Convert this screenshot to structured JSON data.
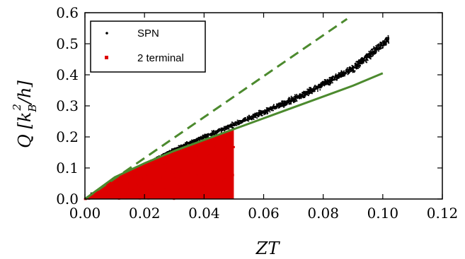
{
  "chart_data": {
    "type": "scatter",
    "title": "",
    "xlabel": "ZT",
    "ylabel_parts": {
      "main": "Q [k",
      "sub": "B",
      "sup": "2",
      "tail": "/h]"
    },
    "xlim": [
      0.0,
      0.12
    ],
    "ylim": [
      0.0,
      0.6
    ],
    "x_ticks": [
      0.0,
      0.02,
      0.04,
      0.06,
      0.08,
      0.1,
      0.12
    ],
    "x_tick_labels": [
      "0.00",
      "0.02",
      "0.04",
      "0.06",
      "0.08",
      "0.10",
      "0.12"
    ],
    "y_ticks": [
      0.0,
      0.1,
      0.2,
      0.3,
      0.4,
      0.5,
      0.6
    ],
    "y_tick_labels": [
      "0.0",
      "0.1",
      "0.2",
      "0.3",
      "0.4",
      "0.5",
      "0.6"
    ],
    "grid": false,
    "legend_position": "top-left",
    "colors": {
      "spn": "#000000",
      "two_terminal": "#dd0000",
      "bound": "#4c8a2e"
    },
    "series": [
      {
        "name": "SPN",
        "kind": "scatter-cloud",
        "color": "#000000",
        "approx_points": [
          [
            0.005,
            0.02
          ],
          [
            0.01,
            0.05
          ],
          [
            0.02,
            0.11
          ],
          [
            0.03,
            0.16
          ],
          [
            0.04,
            0.2
          ],
          [
            0.05,
            0.24
          ],
          [
            0.06,
            0.28
          ],
          [
            0.07,
            0.32
          ],
          [
            0.08,
            0.37
          ],
          [
            0.09,
            0.42
          ],
          [
            0.1,
            0.5
          ],
          [
            0.103,
            0.52
          ]
        ]
      },
      {
        "name": "2 terminal",
        "kind": "filled-region",
        "color": "#dd0000",
        "x_range": [
          0.0,
          0.05
        ],
        "upper_boundary": "solid-bound"
      },
      {
        "name": "",
        "kind": "line",
        "style": "dashed",
        "color": "#4c8a2e",
        "x": [
          0.0,
          0.088
        ],
        "y": [
          0.0,
          0.58
        ]
      },
      {
        "name": "",
        "kind": "line",
        "style": "solid",
        "color": "#4c8a2e",
        "x": [
          0.0,
          0.01,
          0.02,
          0.03,
          0.04,
          0.05,
          0.06,
          0.07,
          0.08,
          0.09,
          0.1
        ],
        "y": [
          0.0,
          0.07,
          0.115,
          0.155,
          0.19,
          0.225,
          0.26,
          0.295,
          0.33,
          0.365,
          0.405
        ]
      }
    ],
    "legend": [
      {
        "label": "SPN",
        "marker": "small-dot",
        "color": "#000000"
      },
      {
        "label": "2 terminal",
        "marker": "square-dot",
        "color": "#dd0000"
      }
    ]
  }
}
